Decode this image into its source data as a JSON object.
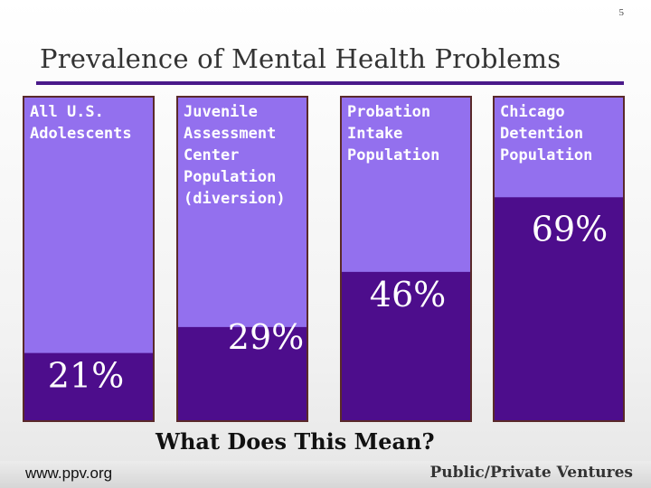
{
  "slide_number": "5",
  "title": "Prevalence of Mental Health Problems",
  "subtitle": "What Does This Mean?",
  "footer": {
    "url": "www.ppv.org",
    "organization": "Public/Private Ventures"
  },
  "colors": {
    "accent": "#4a1a8a",
    "bar_light": "#9370ee",
    "bar_dark": "#4d0d8c",
    "bar_border": "#5a2a2a"
  },
  "chart_data": {
    "type": "bar",
    "stacked_to_100": true,
    "title": "Prevalence of Mental Health Problems",
    "categories": [
      [
        "All U.S.",
        "Adolescents"
      ],
      [
        "Juvenile",
        "Assessment",
        "Center",
        "Population",
        "(diversion)"
      ],
      [
        "Probation",
        "Intake",
        "Population"
      ],
      [
        "Chicago",
        "Detention",
        "Population"
      ]
    ],
    "values": [
      21,
      29,
      46,
      69
    ],
    "value_labels": [
      "21%",
      "29%",
      "46%",
      "69%"
    ],
    "ylim": [
      0,
      100
    ],
    "grid": false,
    "legend": "none"
  }
}
